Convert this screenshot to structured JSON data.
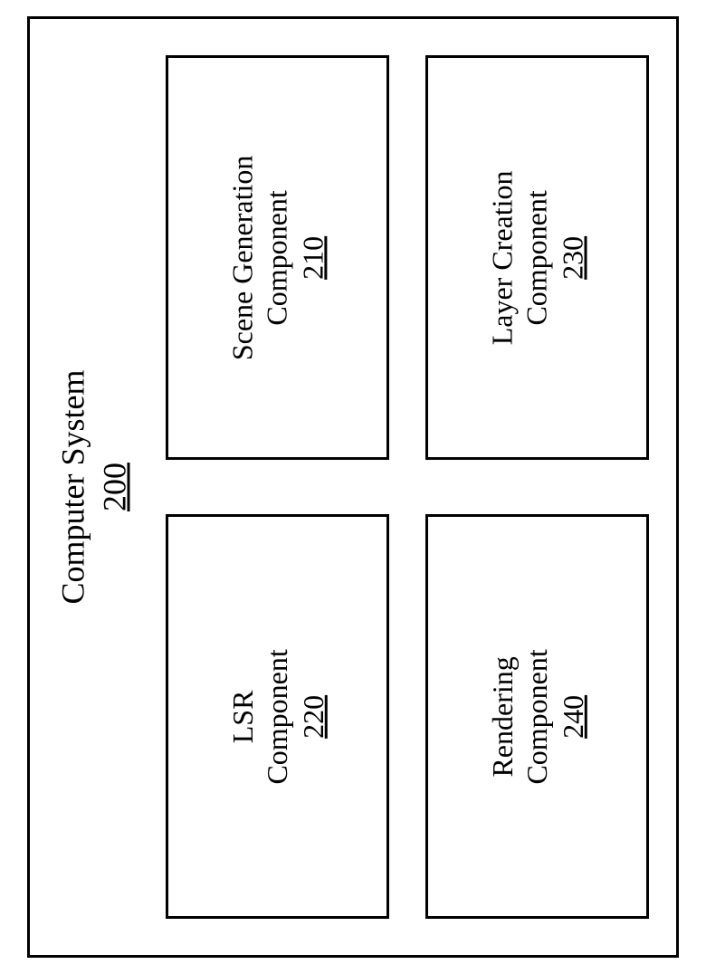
{
  "diagram": {
    "type": "block-diagram",
    "orientation": "landscape-rotated-90ccw",
    "outer_border_color": "#000000",
    "outer_border_width": 3,
    "background_color": "#ffffff",
    "box_border_color": "#000000",
    "box_border_width": 3,
    "font_family": "Times New Roman",
    "title_fontsize": 36,
    "label_fontsize": 32,
    "text_color": "#000000",
    "title": {
      "line1": "Computer System",
      "ref": "200"
    },
    "components": [
      {
        "id": "scene-generation",
        "line1": "Scene Generation",
        "line2": "Component",
        "ref": "210",
        "grid_row": 1,
        "grid_col": 1
      },
      {
        "id": "layer-creation",
        "line1": "Layer Creation",
        "line2": "Component",
        "ref": "230",
        "grid_row": 1,
        "grid_col": 2
      },
      {
        "id": "lsr",
        "line1": "LSR",
        "line2": "Component",
        "ref": "220",
        "grid_row": 2,
        "grid_col": 1
      },
      {
        "id": "rendering",
        "line1": "Rendering",
        "line2": "Component",
        "ref": "240",
        "grid_row": 2,
        "grid_col": 2
      }
    ]
  }
}
